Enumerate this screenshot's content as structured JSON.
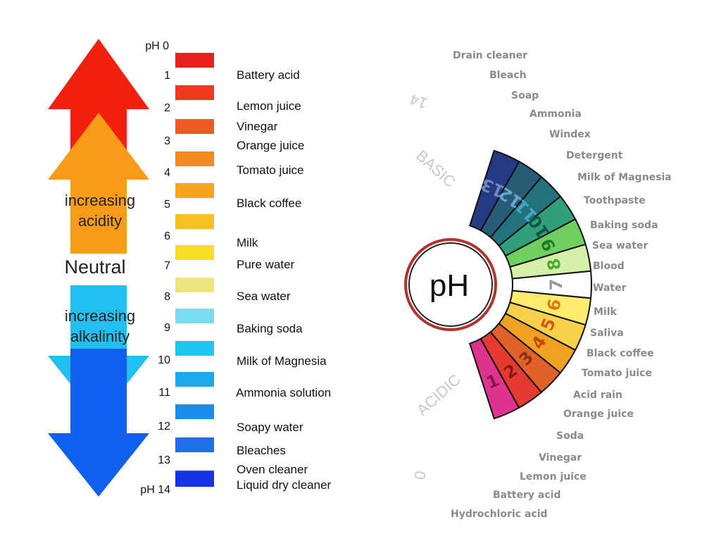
{
  "scale_left": {
    "arrows": {
      "acidity_label": [
        "increasing",
        "acidity"
      ],
      "neutral_label": "Neutral",
      "alkalinity_label": [
        "increasing",
        "alkalinity"
      ]
    },
    "levels": [
      {
        "num": "pH 0",
        "color": "#e8221c"
      },
      {
        "num": "1",
        "color": "#ef3a1d"
      },
      {
        "num": "2",
        "color": "#f05a23"
      },
      {
        "num": "3",
        "color": "#f58b1f"
      },
      {
        "num": "4",
        "color": "#f7a51f"
      },
      {
        "num": "5",
        "color": "#f6c11e"
      },
      {
        "num": "6",
        "color": "#f8de22"
      },
      {
        "num": "7",
        "color": "#ede47e"
      },
      {
        "num": "8",
        "color": "#79dcef"
      },
      {
        "num": "9",
        "color": "#1ec6ef"
      },
      {
        "num": "10",
        "color": "#1ba9ec"
      },
      {
        "num": "11",
        "color": "#1d8bea"
      },
      {
        "num": "12",
        "color": "#1f6ee8"
      },
      {
        "num": "13",
        "color": "#1a49e6"
      },
      {
        "num": "pH 14",
        "color": "#1532e6"
      }
    ],
    "items": [
      "Battery acid",
      "Lemon juice",
      "Vinegar",
      "Orange juice",
      "Tomato juice",
      "Black coffee",
      "Milk",
      "Pure water",
      "Sea water",
      "Baking soda",
      "Milk of Magnesia",
      "Ammonia solution",
      "Soapy water",
      "Bleaches",
      "Oven cleaner",
      "Liquid dry cleaner"
    ]
  },
  "wheel": {
    "center_label": "pH",
    "side_labels": {
      "basic": "BASIC",
      "acidic": "ACIDIC",
      "zero": "0",
      "fourteen": "14"
    },
    "segments": [
      {
        "num": "1",
        "color": "#e0338f",
        "text_color": "#8a1550"
      },
      {
        "num": "2",
        "color": "#e43a30",
        "text_color": "#8a1a14"
      },
      {
        "num": "3",
        "color": "#e0622a",
        "text_color": "#8a3311"
      },
      {
        "num": "4",
        "color": "#eea21f",
        "text_color": "#c04a10"
      },
      {
        "num": "5",
        "color": "#f7d14a",
        "text_color": "#d35a12"
      },
      {
        "num": "6",
        "color": "#fbec6c",
        "text_color": "#e07a16"
      },
      {
        "num": "7",
        "color": "#ffffff",
        "text_color": "#999999"
      },
      {
        "num": "8",
        "color": "#d4f0a8",
        "text_color": "#4da834"
      },
      {
        "num": "9",
        "color": "#6fd05f",
        "text_color": "#1f7a22"
      },
      {
        "num": "10",
        "color": "#2fa07a",
        "text_color": "#13544a"
      },
      {
        "num": "11",
        "color": "#23727d",
        "text_color": "#46a6c8"
      },
      {
        "num": "12",
        "color": "#275b76",
        "text_color": "#6aa3cc"
      },
      {
        "num": "13",
        "color": "#243a82",
        "text_color": "#6f86c8"
      }
    ],
    "labels": [
      "Hydrochloric acid",
      "Battery acid",
      "Lemon juice",
      "Vinegar",
      "Soda",
      "Orange juice",
      "Acid rain",
      "Tomato juice",
      "Black coffee",
      "Saliva",
      "Milk",
      "Water",
      "Blood",
      "Sea water",
      "Baking soda",
      "Toothpaste",
      "Milk of Magnesia",
      "Detergent",
      "Windex",
      "Ammonia",
      "Soap",
      "Bleach",
      "Drain cleaner"
    ]
  }
}
